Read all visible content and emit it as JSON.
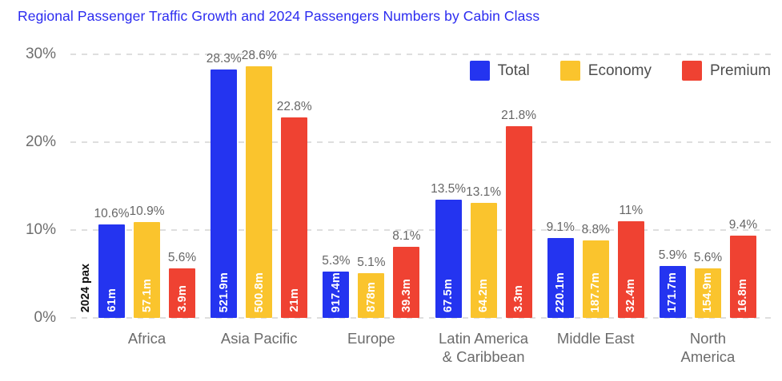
{
  "colors": {
    "title": "#2B2BF0",
    "grid": "#DEDEDE",
    "axis_text": "#6E6E6E",
    "total": "#2434F0",
    "economy": "#FAC42D",
    "premium": "#EF4232"
  },
  "annotation_label": "2024 pax",
  "chart_data": {
    "type": "bar",
    "title": "Regional Passenger Traffic Growth and 2024 Passengers Numbers by Cabin Class",
    "categories": [
      "Africa",
      "Asia Pacific",
      "Europe",
      "Latin America & Caribbean",
      "Middle East",
      "North America"
    ],
    "categories_display": [
      "Africa",
      "Asia Pacific",
      "Europe",
      "Latin America\n& Caribbean",
      "Middle East",
      "North\nAmerica"
    ],
    "series": [
      {
        "name": "Total",
        "color": "#2434F0",
        "values": [
          10.6,
          28.3,
          5.3,
          13.5,
          9.1,
          5.9
        ],
        "value_labels": [
          "10.6%",
          "28.3%",
          "5.3%",
          "13.5%",
          "9.1%",
          "5.9%"
        ],
        "pax_labels": [
          "61m",
          "521.9m",
          "917.4m",
          "67.5m",
          "220.1m",
          "171.7m"
        ]
      },
      {
        "name": "Economy",
        "color": "#FAC42D",
        "values": [
          10.9,
          28.6,
          5.1,
          13.1,
          8.8,
          5.6
        ],
        "value_labels": [
          "10.9%",
          "28.6%",
          "5.1%",
          "13.1%",
          "8.8%",
          "5.6%"
        ],
        "pax_labels": [
          "57.1m",
          "500.8m",
          "878m",
          "64.2m",
          "187.7m",
          "154.9m"
        ]
      },
      {
        "name": "Premium",
        "color": "#EF4232",
        "values": [
          5.6,
          22.8,
          8.1,
          21.8,
          11,
          9.4
        ],
        "value_labels": [
          "5.6%",
          "22.8%",
          "8.1%",
          "21.8%",
          "11%",
          "9.4%"
        ],
        "pax_labels": [
          "3.9m",
          "21m",
          "39.3m",
          "3.3m",
          "32.4m",
          "16.8m"
        ]
      }
    ],
    "ylim": [
      0,
      30
    ],
    "yticks": [
      0,
      10,
      20,
      30
    ],
    "ytick_labels": [
      "0%",
      "10%",
      "20%",
      "30%"
    ],
    "grid": "horizontal-dashed",
    "legend_position": "top-right",
    "annotation": "2024 pax",
    "unit_note": "in-bar labels show 2024 passengers in millions"
  }
}
